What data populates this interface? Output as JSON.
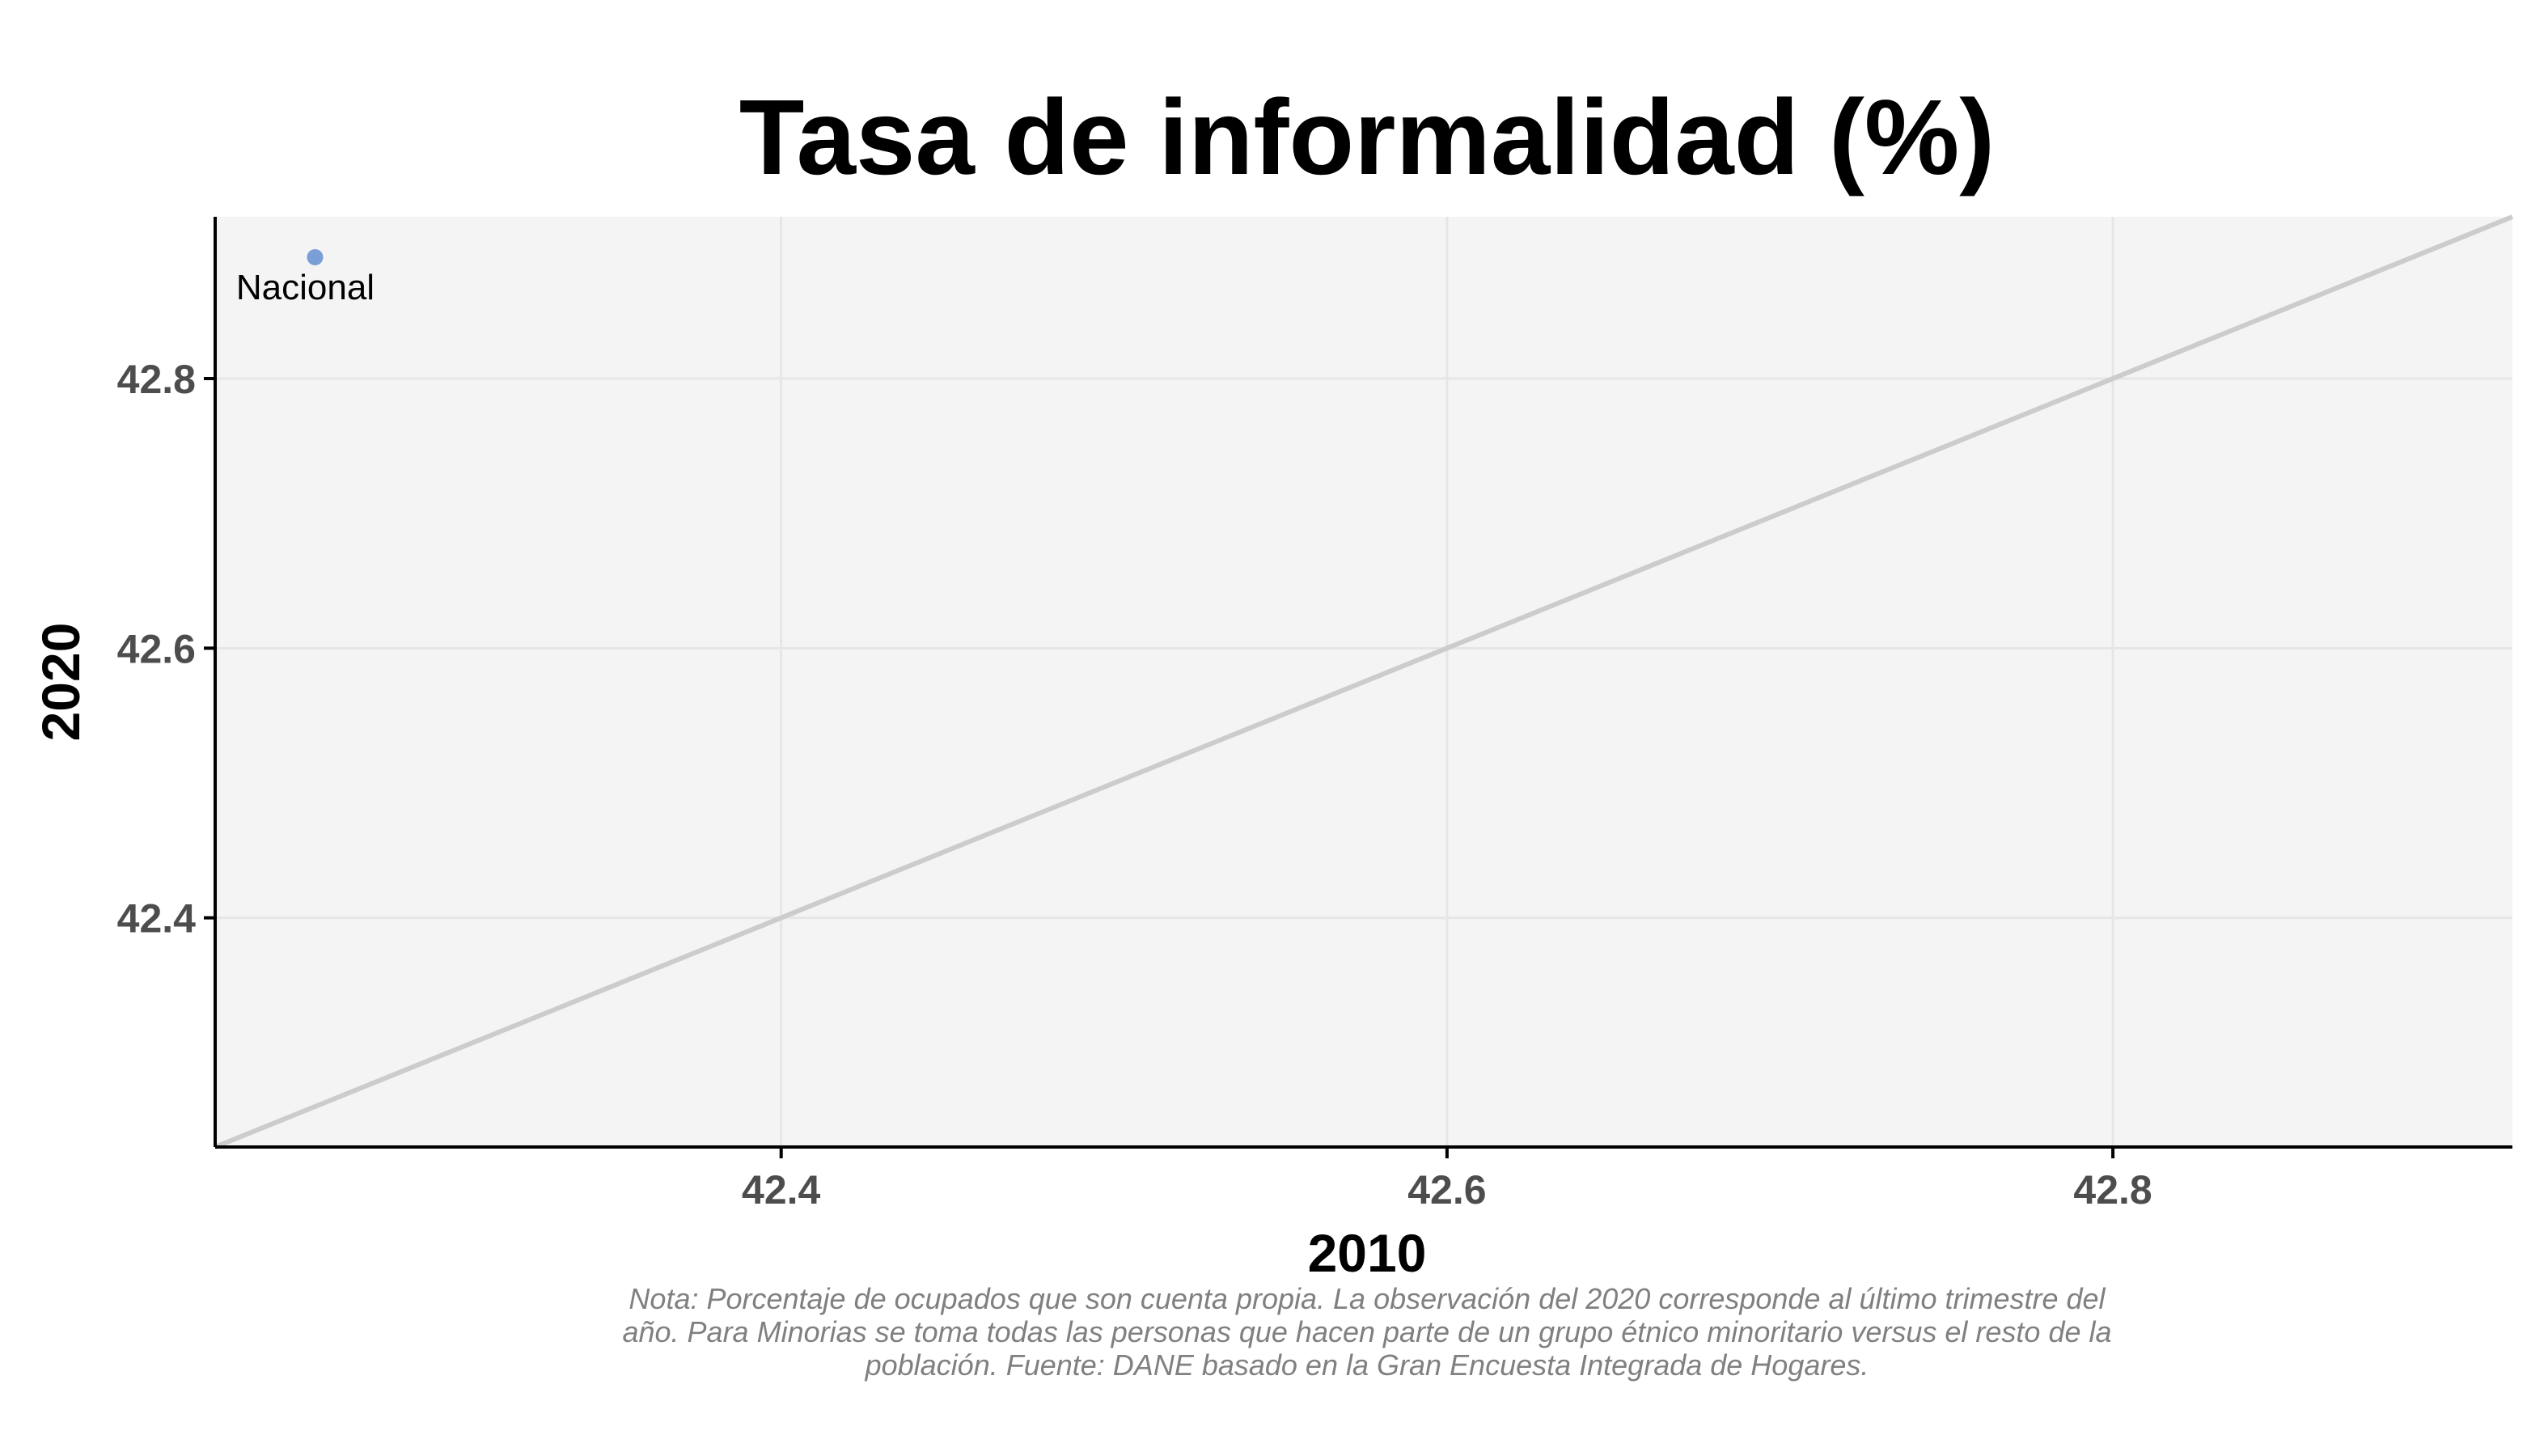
{
  "chart_data": {
    "type": "scatter",
    "title": "Tasa de informalidad (%)",
    "xlabel": "2010",
    "ylabel": "2020",
    "xlim": [
      42.23,
      42.92
    ],
    "ylim": [
      42.23,
      42.92
    ],
    "x_ticks": [
      "42.4",
      "42.6",
      "42.8"
    ],
    "y_ticks": [
      "42.4",
      "42.6",
      "42.8"
    ],
    "grid": true,
    "reference_line": "y = x",
    "points": [
      {
        "label": "Nacional",
        "x": 42.26,
        "y": 42.89,
        "color": "#7a9fd8"
      }
    ],
    "caption": "Nota: Porcentaje de ocupados que son cuenta propia. La observación del 2020 corresponde al último trimestre del año. Para Minorias se toma todas las personas que hacen parte de un grupo étnico minoritario versus el resto de la población. Fuente: DANE basado en la Gran Encuesta Integrada de Hogares."
  },
  "colors": {
    "panel_background": "#f4f4f4",
    "grid": "#e6e6e6",
    "reference_line": "#cccccc",
    "axis": "#000000"
  }
}
